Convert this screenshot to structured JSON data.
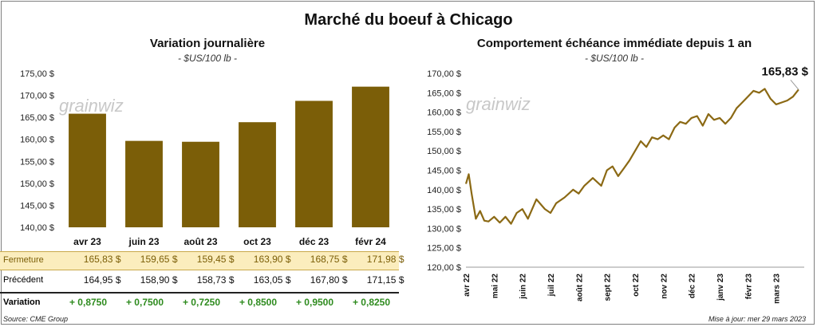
{
  "title": "Marché du boeuf à Chicago",
  "left": {
    "subtitle": "Variation  journalière",
    "unit": "- $US/100 lb -"
  },
  "right": {
    "subtitle": "Comportement  échéance  immédiate depuis 1 an",
    "unit": "- $US/100 lb -",
    "last_value_label": "165,83 $"
  },
  "watermark": "grainwiz",
  "table": {
    "row_labels": {
      "close": "Fermeture",
      "prev": "Précédent",
      "var": "Variation"
    },
    "currency": "$",
    "close": [
      "165,83",
      "159,65",
      "159,45",
      "163,90",
      "168,75",
      "171,98"
    ],
    "prev": [
      "164,95",
      "158,90",
      "158,73",
      "163,05",
      "167,80",
      "171,15"
    ],
    "var": [
      "+ 0,8750",
      "+ 0,7500",
      "+ 0,7250",
      "+ 0,8500",
      "+ 0,9500",
      "+ 0,8250"
    ]
  },
  "footer": {
    "source": "Source: CME Group",
    "updated": "Mise à jour: mer 29 mars 2023"
  },
  "colors": {
    "bar": "#7b5e08",
    "line": "#8b6914",
    "close_row": "#fbedbd",
    "positive": "#2e8b1e"
  },
  "chart_data": [
    {
      "type": "bar",
      "title": "Variation  journalière",
      "subtitle": "- $US/100 lb -",
      "categories": [
        "avr 23",
        "juin 23",
        "août 23",
        "oct 23",
        "déc 23",
        "févr 24"
      ],
      "values": [
        165.83,
        159.65,
        159.45,
        163.9,
        168.75,
        171.98
      ],
      "ylim": [
        140,
        175
      ],
      "yticks": [
        140,
        145,
        150,
        155,
        160,
        165,
        170,
        175
      ],
      "ytick_labels": [
        "140,00 $",
        "145,00 $",
        "150,00 $",
        "155,00 $",
        "160,00 $",
        "165,00 $",
        "170,00 $",
        "175,00 $"
      ],
      "grid": false
    },
    {
      "type": "line",
      "title": "Comportement  échéance  immédiate depuis 1 an",
      "subtitle": "- $US/100 lb -",
      "ylim": [
        120,
        170
      ],
      "yticks": [
        120,
        125,
        130,
        135,
        140,
        145,
        150,
        155,
        160,
        165,
        170
      ],
      "ytick_labels": [
        "120,00 $",
        "125,00 $",
        "130,00 $",
        "135,00 $",
        "140,00 $",
        "145,00 $",
        "150,00 $",
        "155,00 $",
        "160,00 $",
        "165,00 $",
        "170,00 $"
      ],
      "xtick_labels": [
        "avr 22",
        "mai 22",
        "juin 22",
        "juil 22",
        "août 22",
        "sept 22",
        "oct 22",
        "nov 22",
        "déc 22",
        "janv 23",
        "févr 23",
        "mars 23"
      ],
      "x": [
        0,
        0.1,
        0.2,
        0.35,
        0.5,
        0.65,
        0.8,
        1.0,
        1.2,
        1.4,
        1.6,
        1.8,
        2.0,
        2.2,
        2.5,
        2.8,
        3.0,
        3.2,
        3.5,
        3.8,
        4.0,
        4.2,
        4.5,
        4.8,
        5.0,
        5.2,
        5.4,
        5.6,
        5.8,
        6.0,
        6.2,
        6.4,
        6.6,
        6.8,
        7.0,
        7.2,
        7.4,
        7.6,
        7.8,
        8.0,
        8.2,
        8.4,
        8.6,
        8.8,
        9.0,
        9.2,
        9.4,
        9.6,
        9.8,
        10.0,
        10.2,
        10.4,
        10.6,
        10.8,
        11.0,
        11.2,
        11.4,
        11.6,
        11.8
      ],
      "y": [
        141.5,
        144.0,
        139.0,
        132.5,
        134.5,
        132.0,
        131.8,
        133.0,
        131.5,
        133.0,
        131.2,
        134.0,
        135.0,
        132.5,
        137.5,
        135.0,
        134.0,
        136.5,
        138.0,
        140.0,
        139.0,
        141.0,
        143.0,
        141.0,
        145.0,
        146.0,
        143.5,
        145.5,
        147.5,
        150.0,
        152.5,
        151.0,
        153.5,
        153.0,
        154.0,
        153.0,
        156.0,
        157.5,
        157.0,
        158.5,
        159.0,
        156.5,
        159.5,
        158.0,
        158.5,
        157.0,
        158.5,
        161.0,
        162.5,
        164.0,
        165.5,
        165.0,
        166.0,
        163.5,
        162.0,
        162.5,
        163.0,
        164.0,
        165.83
      ],
      "last_value": 165.83,
      "grid": false
    }
  ]
}
